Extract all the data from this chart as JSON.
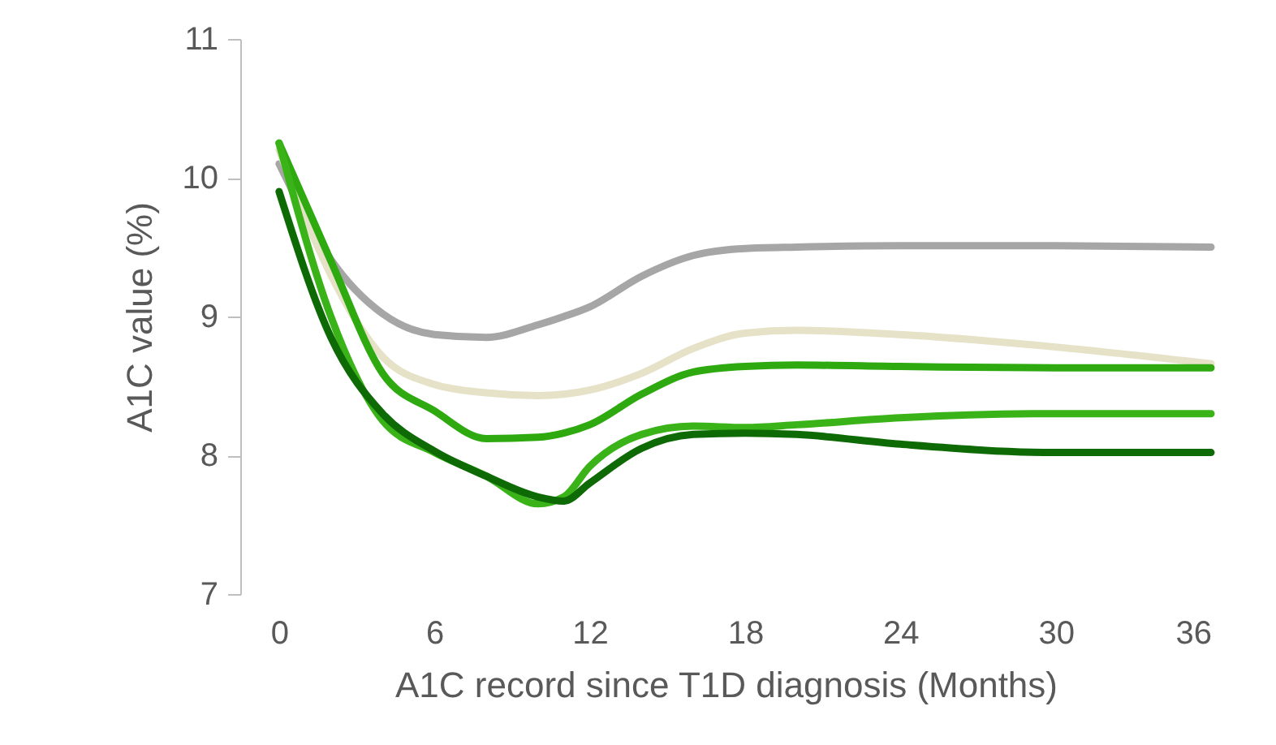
{
  "chart_data": {
    "type": "line",
    "xlabel": "A1C record since T1D diagnosis (Months)",
    "ylabel": "A1C value (%)",
    "x": [
      0,
      2,
      4,
      6,
      8,
      10,
      11,
      12,
      14,
      16,
      18,
      20,
      24,
      30,
      36
    ],
    "xlim": [
      -1.5,
      36
    ],
    "xticks": [
      0,
      6,
      12,
      18,
      24,
      30,
      36
    ],
    "ylim": [
      7,
      11
    ],
    "yticks": [
      7,
      8,
      9,
      10,
      11
    ],
    "grid": false,
    "marker": "none",
    "line_style": "solid",
    "series": [
      {
        "color": "#a6a6a6",
        "values": [
          10.1,
          9.41,
          9.02,
          8.87,
          8.85,
          8.94,
          9.0,
          9.07,
          9.29,
          9.44,
          9.49,
          9.5,
          9.51,
          9.51,
          9.5
        ]
      },
      {
        "color": "#e6e2c8",
        "values": [
          10.2,
          9.3,
          8.71,
          8.51,
          8.45,
          8.43,
          8.44,
          8.47,
          8.59,
          8.77,
          8.88,
          8.9,
          8.87,
          8.78,
          8.66
        ]
      },
      {
        "color": "#2eaa10",
        "values": [
          10.25,
          9.4,
          8.59,
          8.32,
          8.12,
          8.13,
          8.16,
          8.22,
          8.44,
          8.6,
          8.64,
          8.65,
          8.64,
          8.63,
          8.63
        ]
      },
      {
        "color": "#3ab318",
        "values": [
          10.25,
          9.0,
          8.25,
          8.02,
          7.85,
          7.65,
          7.7,
          7.92,
          8.15,
          8.21,
          8.2,
          8.22,
          8.27,
          8.3,
          8.3
        ]
      },
      {
        "color": "#0e6a05",
        "values": [
          9.9,
          8.85,
          8.3,
          8.03,
          7.85,
          7.7,
          7.67,
          7.8,
          8.05,
          8.15,
          8.16,
          8.15,
          8.08,
          8.02,
          8.02
        ]
      }
    ]
  }
}
